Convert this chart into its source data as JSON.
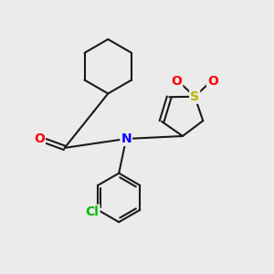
{
  "background_color": "#ebebeb",
  "bond_color": "#1a1a1a",
  "bond_width": 1.5,
  "atom_colors": {
    "O": "#ff0000",
    "N": "#0000ff",
    "S": "#b8b800",
    "Cl": "#00bb00",
    "C": "#1a1a1a"
  },
  "figsize": [
    3.0,
    3.0
  ],
  "dpi": 100
}
